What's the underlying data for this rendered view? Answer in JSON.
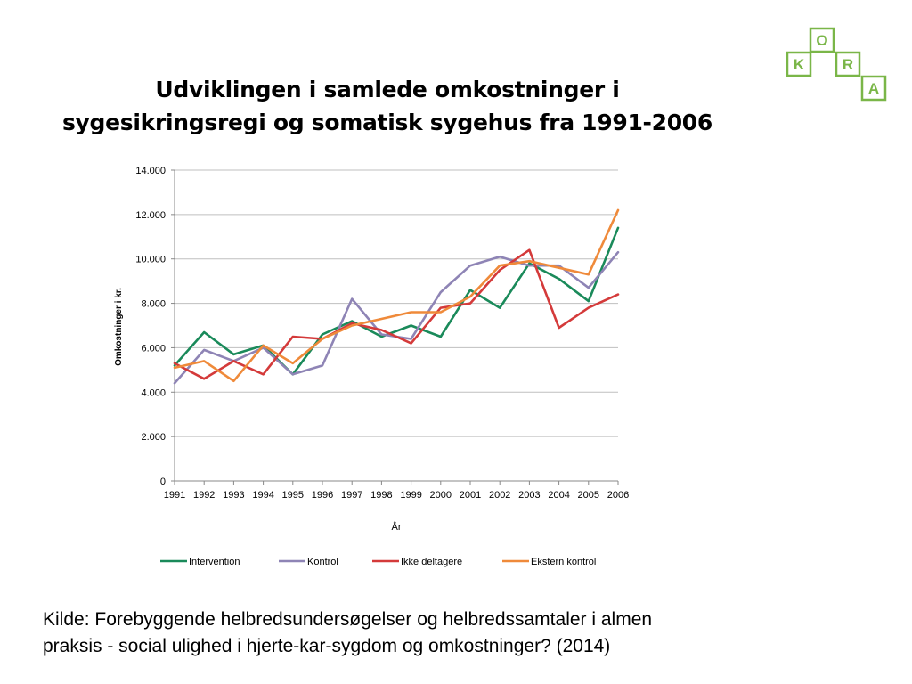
{
  "slide": {
    "title_lines": [
      "Udviklingen i samlede omkostninger i",
      "sygesikringsregi og somatisk sygehus fra 1991-2006"
    ],
    "source_lines": [
      "Kilde: Forebyggende helbredsundersøgelser og helbredssamtaler i almen",
      "praksis - social ulighed i hjerte-kar-sygdom og omkostninger? (2014)"
    ]
  },
  "logo": {
    "letters": [
      "O",
      "K",
      "R",
      "A"
    ],
    "color": "#7ab648"
  },
  "chart_data": {
    "type": "line",
    "x": [
      "1991",
      "1992",
      "1993",
      "1994",
      "1995",
      "1996",
      "1997",
      "1998",
      "1999",
      "2000",
      "2001",
      "2002",
      "2003",
      "2004",
      "2005",
      "2006"
    ],
    "xlabel": "År",
    "ylabel": "Omkostninger i kr.",
    "ylim": [
      0,
      14000
    ],
    "yticks": [
      0,
      2000,
      4000,
      6000,
      8000,
      10000,
      12000,
      14000
    ],
    "ytick_labels": [
      "0",
      "2.000",
      "4.000",
      "6.000",
      "8.000",
      "10.000",
      "12.000",
      "14.000"
    ],
    "grid": true,
    "legend_position": "bottom",
    "series": [
      {
        "name": "Intervention",
        "color": "#1a8a5a",
        "values": [
          5200,
          6700,
          5700,
          6100,
          4800,
          6600,
          7200,
          6500,
          7000,
          6500,
          8600,
          7800,
          9800,
          9100,
          8100,
          11400
        ]
      },
      {
        "name": "Kontrol",
        "color": "#8e84b5",
        "values": [
          4400,
          5900,
          5400,
          6000,
          4800,
          5200,
          8200,
          6600,
          6400,
          8500,
          9700,
          10100,
          9700,
          9700,
          8700,
          10300
        ]
      },
      {
        "name": "Ikke deltagere",
        "color": "#d43a3a",
        "values": [
          5300,
          4600,
          5400,
          4800,
          6500,
          6400,
          7100,
          6800,
          6200,
          7800,
          8000,
          9500,
          10400,
          6900,
          7800,
          8400
        ]
      },
      {
        "name": "Ekstern kontrol",
        "color": "#ef8a3a",
        "values": [
          5100,
          5400,
          4500,
          6100,
          5300,
          6400,
          7000,
          7300,
          7600,
          7600,
          8300,
          9700,
          9900,
          9600,
          9300,
          12200
        ]
      }
    ]
  }
}
